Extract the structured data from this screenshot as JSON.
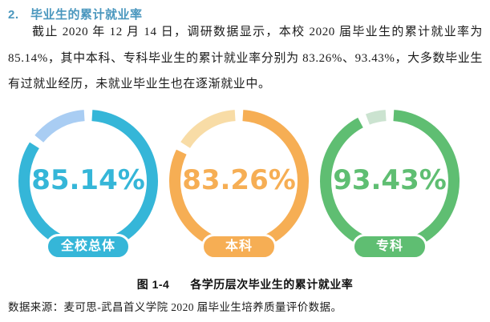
{
  "heading": {
    "number": "2.",
    "title": "毕业生的累计就业率",
    "color": "#4a97be"
  },
  "paragraph": {
    "text": "截止 2020 年 12 月 14 日，调研数据显示，本校 2020 届毕业生的累计就业率为 85.14%，其中本科、专科毕业生的累计就业率分别为 83.26%、93.43%，大多数毕业生有过就业经历，未就业毕业生也在逐渐就业中。"
  },
  "chart_data": {
    "type": "pie",
    "subtype": "donut-gauge-set",
    "title": "各学历层次毕业生的累计就业率",
    "unit": "%",
    "legend_position": "bottom-pill-inside-each-donut",
    "series": [
      {
        "label": "全校总体",
        "value": 85.14,
        "display": "85.14%",
        "color": "#35b6d8",
        "remainder_color": "#a9cdf3"
      },
      {
        "label": "本科",
        "value": 83.26,
        "display": "83.26%",
        "color": "#f6ae54",
        "remainder_color": "#f8dca6"
      },
      {
        "label": "专科",
        "value": 93.43,
        "display": "93.43%",
        "color": "#5fbe72",
        "remainder_color": "#cbe3d0"
      }
    ]
  },
  "caption": {
    "figure_label": "图 1-4",
    "text": "各学历层次毕业生的累计就业率"
  },
  "source": {
    "text": "数据来源：麦可思-武昌首义学院 2020 届毕业生培养质量评价数据。"
  }
}
